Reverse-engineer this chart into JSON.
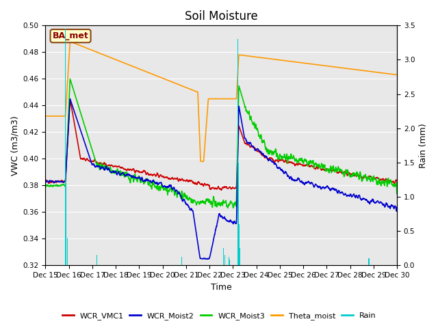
{
  "title": "Soil Moisture",
  "ylabel_left": "VWC (m3/m3)",
  "ylabel_right": "Rain (mm)",
  "xlabel": "Time",
  "ylim_left": [
    0.32,
    0.5
  ],
  "ylim_right": [
    0.0,
    3.5
  ],
  "background_color": "#ffffff",
  "plot_bg_color": "#e8e8e8",
  "grid_color": "#ffffff",
  "station_label": "BA_met",
  "x_tick_labels": [
    "Dec 15",
    "Dec 16",
    "Dec 17",
    "Dec 18",
    "Dec 19",
    "Dec 20",
    "Dec 21",
    "Dec 22",
    "Dec 23",
    "Dec 24",
    "Dec 25",
    "Dec 26",
    "Dec 27",
    "Dec 28",
    "Dec 29",
    "Dec 30"
  ],
  "legend_entries": [
    "WCR_VMC1",
    "WCR_Moist2",
    "WCR_Moist3",
    "Theta_moist",
    "Rain"
  ],
  "legend_colors": [
    "#cc0000",
    "#0000cc",
    "#00cc00",
    "#ff9900",
    "#00cccc"
  ],
  "line_width": 1.2,
  "title_fontsize": 12,
  "label_fontsize": 9,
  "tick_fontsize": 7.5
}
